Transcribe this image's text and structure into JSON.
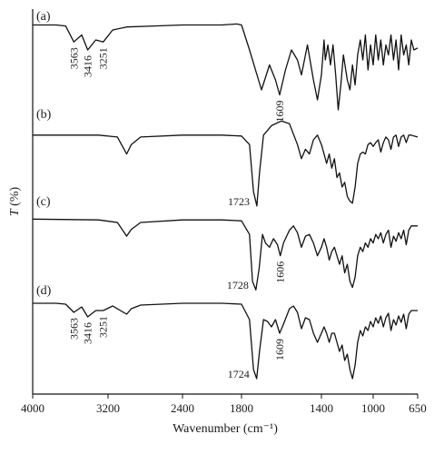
{
  "chart_data": {
    "type": "line",
    "xlabel": "Wavenumber (cm⁻¹)",
    "ylabel": "T (%)",
    "xlim": [
      4000,
      650
    ],
    "x_reversed": true,
    "x_ticks": [
      4000,
      3200,
      2400,
      1800,
      1400,
      1000,
      650
    ],
    "x_tick_labels": [
      "4000",
      "3200",
      "2400",
      "1800",
      "1400",
      "1000",
      "650"
    ],
    "y_ticks_shown": false,
    "series": [
      {
        "name": "(a)",
        "points": [
          [
            4000,
            95
          ],
          [
            3750,
            95
          ],
          [
            3650,
            94
          ],
          [
            3563,
            78
          ],
          [
            3480,
            85
          ],
          [
            3416,
            70
          ],
          [
            3330,
            80
          ],
          [
            3251,
            78
          ],
          [
            3150,
            90
          ],
          [
            3000,
            93
          ],
          [
            2700,
            94
          ],
          [
            2400,
            95
          ],
          [
            2000,
            95
          ],
          [
            1850,
            96
          ],
          [
            1800,
            95
          ],
          [
            1760,
            70
          ],
          [
            1700,
            30
          ],
          [
            1660,
            55
          ],
          [
            1630,
            40
          ],
          [
            1609,
            25
          ],
          [
            1580,
            50
          ],
          [
            1550,
            70
          ],
          [
            1520,
            60
          ],
          [
            1500,
            45
          ],
          [
            1470,
            75
          ],
          [
            1440,
            40
          ],
          [
            1420,
            20
          ],
          [
            1400,
            45
          ],
          [
            1380,
            80
          ],
          [
            1370,
            60
          ],
          [
            1350,
            75
          ],
          [
            1330,
            55
          ],
          [
            1310,
            75
          ],
          [
            1290,
            45
          ],
          [
            1270,
            10
          ],
          [
            1250,
            35
          ],
          [
            1230,
            65
          ],
          [
            1200,
            40
          ],
          [
            1180,
            30
          ],
          [
            1160,
            55
          ],
          [
            1140,
            35
          ],
          [
            1120,
            65
          ],
          [
            1100,
            80
          ],
          [
            1080,
            60
          ],
          [
            1060,
            85
          ],
          [
            1040,
            50
          ],
          [
            1020,
            75
          ],
          [
            1000,
            55
          ],
          [
            980,
            85
          ],
          [
            960,
            60
          ],
          [
            940,
            80
          ],
          [
            920,
            55
          ],
          [
            900,
            75
          ],
          [
            880,
            65
          ],
          [
            860,
            85
          ],
          [
            840,
            60
          ],
          [
            820,
            80
          ],
          [
            800,
            50
          ],
          [
            780,
            85
          ],
          [
            760,
            65
          ],
          [
            740,
            75
          ],
          [
            720,
            55
          ],
          [
            700,
            80
          ],
          [
            680,
            70
          ],
          [
            650,
            72
          ]
        ],
        "annotations": [
          {
            "x": 3563,
            "label": "3563"
          },
          {
            "x": 3416,
            "label": "3416"
          },
          {
            "x": 3251,
            "label": "3251"
          },
          {
            "x": 1609,
            "label": "1609"
          }
        ]
      },
      {
        "name": "(b)",
        "points": [
          [
            4000,
            80
          ],
          [
            3300,
            80
          ],
          [
            3100,
            78
          ],
          [
            3000,
            60
          ],
          [
            2950,
            70
          ],
          [
            2850,
            78
          ],
          [
            2400,
            80
          ],
          [
            2000,
            80
          ],
          [
            1800,
            79
          ],
          [
            1760,
            70
          ],
          [
            1740,
            20
          ],
          [
            1723,
            5
          ],
          [
            1710,
            40
          ],
          [
            1690,
            80
          ],
          [
            1650,
            90
          ],
          [
            1600,
            95
          ],
          [
            1560,
            92
          ],
          [
            1520,
            70
          ],
          [
            1500,
            55
          ],
          [
            1480,
            65
          ],
          [
            1460,
            60
          ],
          [
            1440,
            75
          ],
          [
            1420,
            80
          ],
          [
            1400,
            70
          ],
          [
            1380,
            60
          ],
          [
            1360,
            50
          ],
          [
            1340,
            60
          ],
          [
            1320,
            45
          ],
          [
            1300,
            55
          ],
          [
            1280,
            35
          ],
          [
            1260,
            40
          ],
          [
            1240,
            25
          ],
          [
            1220,
            30
          ],
          [
            1200,
            15
          ],
          [
            1180,
            10
          ],
          [
            1160,
            8
          ],
          [
            1140,
            25
          ],
          [
            1120,
            50
          ],
          [
            1100,
            60
          ],
          [
            1080,
            62
          ],
          [
            1060,
            60
          ],
          [
            1040,
            70
          ],
          [
            1020,
            72
          ],
          [
            1000,
            68
          ],
          [
            980,
            72
          ],
          [
            960,
            75
          ],
          [
            940,
            62
          ],
          [
            920,
            72
          ],
          [
            900,
            78
          ],
          [
            880,
            75
          ],
          [
            860,
            65
          ],
          [
            840,
            78
          ],
          [
            820,
            80
          ],
          [
            800,
            68
          ],
          [
            780,
            78
          ],
          [
            760,
            80
          ],
          [
            740,
            72
          ],
          [
            720,
            80
          ],
          [
            700,
            80
          ],
          [
            680,
            79
          ],
          [
            650,
            78
          ]
        ],
        "annotations": [
          {
            "x": 1723,
            "label": "1723"
          }
        ]
      },
      {
        "name": "(c)",
        "points": [
          [
            4000,
            88
          ],
          [
            3300,
            87
          ],
          [
            3100,
            84
          ],
          [
            3000,
            68
          ],
          [
            2950,
            76
          ],
          [
            2850,
            84
          ],
          [
            2400,
            87
          ],
          [
            2000,
            87
          ],
          [
            1800,
            86
          ],
          [
            1760,
            70
          ],
          [
            1745,
            15
          ],
          [
            1728,
            5
          ],
          [
            1712,
            30
          ],
          [
            1695,
            70
          ],
          [
            1680,
            60
          ],
          [
            1660,
            55
          ],
          [
            1640,
            65
          ],
          [
            1620,
            58
          ],
          [
            1606,
            45
          ],
          [
            1590,
            60
          ],
          [
            1560,
            75
          ],
          [
            1540,
            80
          ],
          [
            1520,
            72
          ],
          [
            1500,
            55
          ],
          [
            1480,
            68
          ],
          [
            1460,
            70
          ],
          [
            1440,
            60
          ],
          [
            1420,
            45
          ],
          [
            1400,
            55
          ],
          [
            1380,
            65
          ],
          [
            1360,
            55
          ],
          [
            1340,
            40
          ],
          [
            1320,
            50
          ],
          [
            1300,
            55
          ],
          [
            1280,
            45
          ],
          [
            1260,
            35
          ],
          [
            1240,
            45
          ],
          [
            1220,
            25
          ],
          [
            1200,
            35
          ],
          [
            1180,
            15
          ],
          [
            1160,
            8
          ],
          [
            1140,
            20
          ],
          [
            1120,
            45
          ],
          [
            1100,
            55
          ],
          [
            1080,
            50
          ],
          [
            1060,
            60
          ],
          [
            1040,
            55
          ],
          [
            1020,
            65
          ],
          [
            1000,
            60
          ],
          [
            980,
            70
          ],
          [
            960,
            65
          ],
          [
            940,
            72
          ],
          [
            920,
            60
          ],
          [
            900,
            70
          ],
          [
            880,
            75
          ],
          [
            860,
            55
          ],
          [
            840,
            68
          ],
          [
            820,
            62
          ],
          [
            800,
            72
          ],
          [
            780,
            65
          ],
          [
            760,
            75
          ],
          [
            740,
            58
          ],
          [
            720,
            75
          ],
          [
            700,
            80
          ],
          [
            680,
            80
          ],
          [
            650,
            80
          ]
        ],
        "annotations": [
          {
            "x": 1728,
            "label": "1728"
          },
          {
            "x": 1606,
            "label": "1606"
          }
        ]
      },
      {
        "name": "(d)",
        "points": [
          [
            4000,
            88
          ],
          [
            3750,
            88
          ],
          [
            3650,
            87
          ],
          [
            3563,
            78
          ],
          [
            3480,
            84
          ],
          [
            3416,
            73
          ],
          [
            3330,
            80
          ],
          [
            3251,
            80
          ],
          [
            3150,
            85
          ],
          [
            3000,
            76
          ],
          [
            2950,
            82
          ],
          [
            2850,
            86
          ],
          [
            2400,
            88
          ],
          [
            2000,
            88
          ],
          [
            1800,
            87
          ],
          [
            1760,
            70
          ],
          [
            1740,
            15
          ],
          [
            1724,
            5
          ],
          [
            1710,
            35
          ],
          [
            1690,
            70
          ],
          [
            1670,
            68
          ],
          [
            1650,
            62
          ],
          [
            1630,
            70
          ],
          [
            1609,
            55
          ],
          [
            1590,
            65
          ],
          [
            1560,
            82
          ],
          [
            1540,
            85
          ],
          [
            1520,
            78
          ],
          [
            1500,
            60
          ],
          [
            1480,
            72
          ],
          [
            1460,
            70
          ],
          [
            1440,
            55
          ],
          [
            1420,
            45
          ],
          [
            1400,
            55
          ],
          [
            1380,
            62
          ],
          [
            1360,
            55
          ],
          [
            1340,
            45
          ],
          [
            1320,
            55
          ],
          [
            1300,
            55
          ],
          [
            1280,
            45
          ],
          [
            1260,
            35
          ],
          [
            1240,
            42
          ],
          [
            1220,
            25
          ],
          [
            1200,
            32
          ],
          [
            1180,
            15
          ],
          [
            1160,
            5
          ],
          [
            1140,
            20
          ],
          [
            1120,
            45
          ],
          [
            1100,
            58
          ],
          [
            1080,
            52
          ],
          [
            1060,
            62
          ],
          [
            1040,
            58
          ],
          [
            1020,
            68
          ],
          [
            1000,
            62
          ],
          [
            980,
            72
          ],
          [
            960,
            66
          ],
          [
            940,
            74
          ],
          [
            920,
            62
          ],
          [
            900,
            72
          ],
          [
            880,
            77
          ],
          [
            860,
            58
          ],
          [
            840,
            70
          ],
          [
            820,
            64
          ],
          [
            800,
            74
          ],
          [
            780,
            67
          ],
          [
            760,
            76
          ],
          [
            740,
            60
          ],
          [
            720,
            76
          ],
          [
            700,
            80
          ],
          [
            680,
            80
          ],
          [
            650,
            80
          ]
        ],
        "annotations": [
          {
            "x": 3563,
            "label": "3563"
          },
          {
            "x": 3416,
            "label": "3416"
          },
          {
            "x": 3251,
            "label": "3251"
          },
          {
            "x": 1724,
            "label": "1724"
          },
          {
            "x": 1609,
            "label": "1609"
          }
        ]
      }
    ]
  }
}
